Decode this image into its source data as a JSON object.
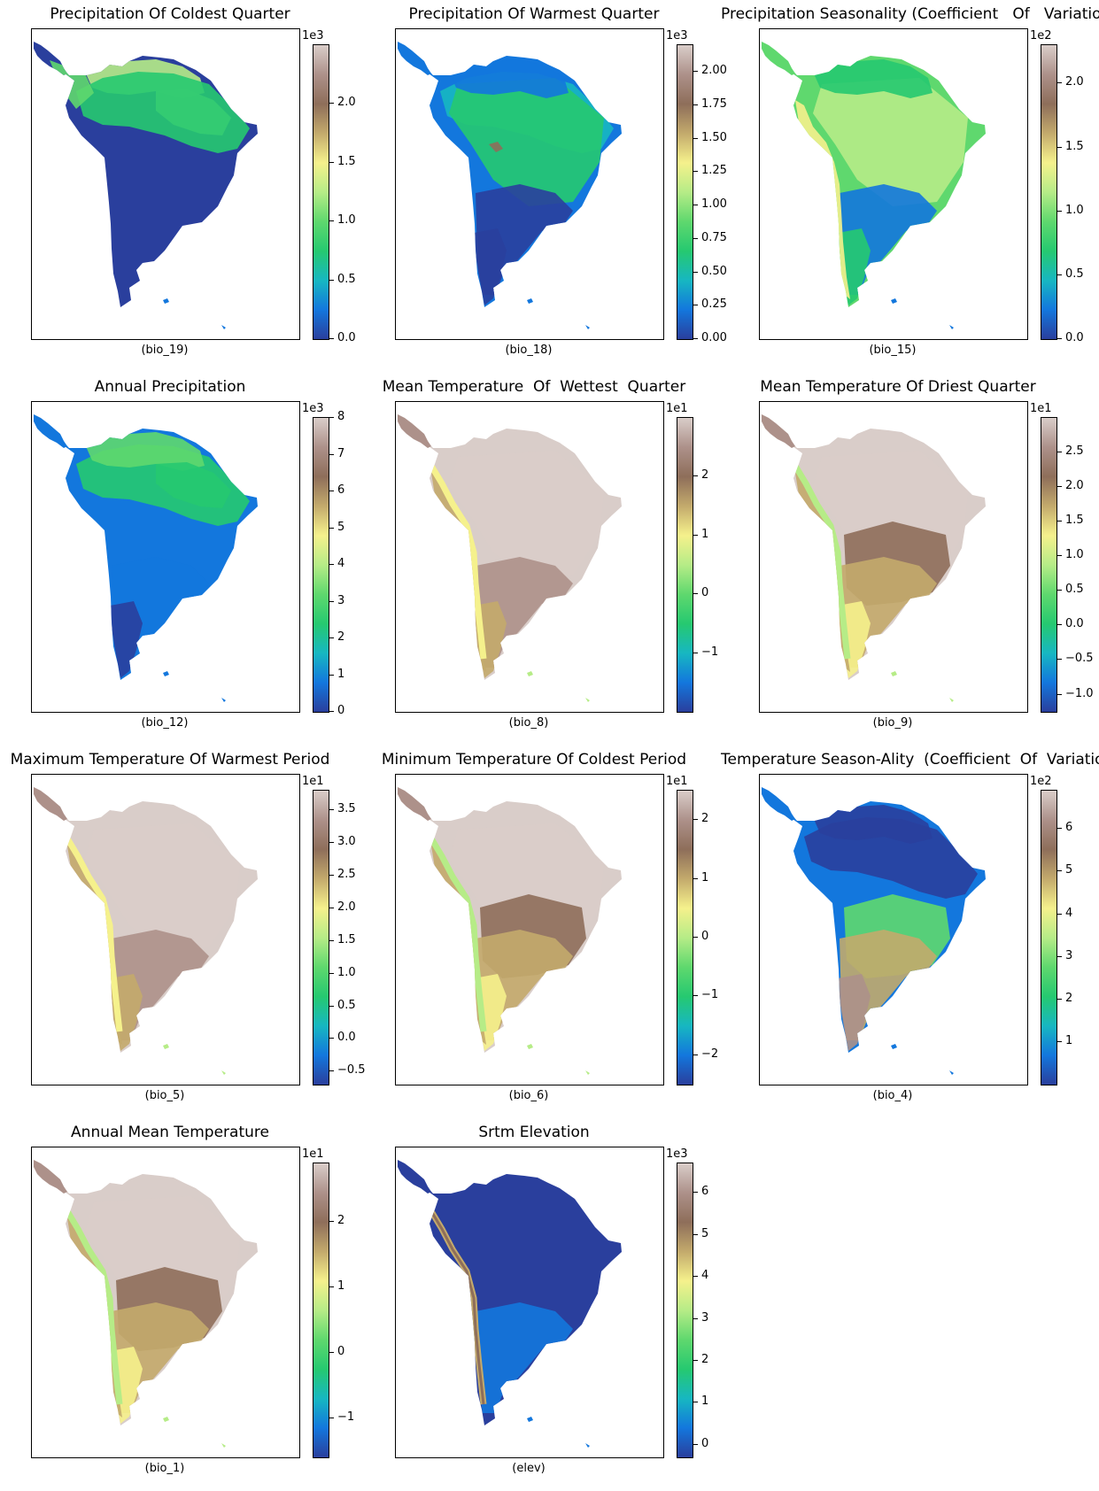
{
  "colormap": [
    "#2a3f9d",
    "#1377dd",
    "#17b7c1",
    "#26c970",
    "#5fd86e",
    "#b6ec87",
    "#f5f18c",
    "#c3aa6c",
    "#8e6e5a",
    "#ad918a",
    "#d9cdc9",
    "#ffffff"
  ],
  "panels": [
    {
      "title": "Precipitation Of Coldest Quarter",
      "code": "(bio_19)",
      "multiplier": "1e3",
      "ticks": [
        {
          "v": 0.0,
          "label": "0.0"
        },
        {
          "v": 0.5,
          "label": "0.5"
        },
        {
          "v": 1.0,
          "label": "1.0"
        },
        {
          "v": 1.5,
          "label": "1.5"
        },
        {
          "v": 2.0,
          "label": "2.0"
        }
      ],
      "vmin": 0,
      "vmax": 2.5,
      "scheme": "coldest"
    },
    {
      "title": "Precipitation Of Warmest Quarter",
      "code": "(bio_18)",
      "multiplier": "1e3",
      "ticks": [
        {
          "v": 0.0,
          "label": "0.00"
        },
        {
          "v": 0.25,
          "label": "0.25"
        },
        {
          "v": 0.5,
          "label": "0.50"
        },
        {
          "v": 0.75,
          "label": "0.75"
        },
        {
          "v": 1.0,
          "label": "1.00"
        },
        {
          "v": 1.25,
          "label": "1.25"
        },
        {
          "v": 1.5,
          "label": "1.50"
        },
        {
          "v": 1.75,
          "label": "1.75"
        },
        {
          "v": 2.0,
          "label": "2.00"
        }
      ],
      "vmin": 0,
      "vmax": 2.2,
      "scheme": "warmest"
    },
    {
      "title": "Precipitation Seasonality (Coefficient   Of   Variation)",
      "code": "(bio_15)",
      "multiplier": "1e2",
      "ticks": [
        {
          "v": 0.0,
          "label": "0.0"
        },
        {
          "v": 0.5,
          "label": "0.5"
        },
        {
          "v": 1.0,
          "label": "1.0"
        },
        {
          "v": 1.5,
          "label": "1.5"
        },
        {
          "v": 2.0,
          "label": "2.0"
        }
      ],
      "vmin": 0,
      "vmax": 2.3,
      "scheme": "seasonality"
    },
    {
      "title": "Annual Precipitation",
      "code": "(bio_12)",
      "multiplier": "1e3",
      "ticks": [
        {
          "v": 0,
          "label": "0"
        },
        {
          "v": 1,
          "label": "1"
        },
        {
          "v": 2,
          "label": "2"
        },
        {
          "v": 3,
          "label": "3"
        },
        {
          "v": 4,
          "label": "4"
        },
        {
          "v": 5,
          "label": "5"
        },
        {
          "v": 6,
          "label": "6"
        },
        {
          "v": 7,
          "label": "7"
        },
        {
          "v": 8,
          "label": "8"
        }
      ],
      "vmin": 0,
      "vmax": 8,
      "scheme": "annualprec"
    },
    {
      "title": "Mean Temperature  Of  Wettest  Quarter",
      "code": "(bio_8)",
      "multiplier": "1e1",
      "ticks": [
        {
          "v": -1,
          "label": "−1"
        },
        {
          "v": 0,
          "label": "0"
        },
        {
          "v": 1,
          "label": "1"
        },
        {
          "v": 2,
          "label": "2"
        }
      ],
      "vmin": -2.0,
      "vmax": 3.0,
      "scheme": "temp"
    },
    {
      "title": "Mean Temperature Of Driest Quarter",
      "code": "(bio_9)",
      "multiplier": "1e1",
      "ticks": [
        {
          "v": -1.0,
          "label": "−1.0"
        },
        {
          "v": -0.5,
          "label": "−0.5"
        },
        {
          "v": 0.0,
          "label": "0.0"
        },
        {
          "v": 0.5,
          "label": "0.5"
        },
        {
          "v": 1.0,
          "label": "1.0"
        },
        {
          "v": 1.5,
          "label": "1.5"
        },
        {
          "v": 2.0,
          "label": "2.0"
        },
        {
          "v": 2.5,
          "label": "2.5"
        }
      ],
      "vmin": -1.25,
      "vmax": 3.0,
      "scheme": "tempcool"
    },
    {
      "title": "Maximum Temperature Of Warmest Period",
      "code": "(bio_5)",
      "multiplier": "1e1",
      "ticks": [
        {
          "v": -0.5,
          "label": "−0.5"
        },
        {
          "v": 0.0,
          "label": "0.0"
        },
        {
          "v": 0.5,
          "label": "0.5"
        },
        {
          "v": 1.0,
          "label": "1.0"
        },
        {
          "v": 1.5,
          "label": "1.5"
        },
        {
          "v": 2.0,
          "label": "2.0"
        },
        {
          "v": 2.5,
          "label": "2.5"
        },
        {
          "v": 3.0,
          "label": "3.0"
        },
        {
          "v": 3.5,
          "label": "3.5"
        }
      ],
      "vmin": -0.7,
      "vmax": 3.8,
      "scheme": "temp"
    },
    {
      "title": "Minimum Temperature Of Coldest Period",
      "code": "(bio_6)",
      "multiplier": "1e1",
      "ticks": [
        {
          "v": -2,
          "label": "−2"
        },
        {
          "v": -1,
          "label": "−1"
        },
        {
          "v": 0,
          "label": "0"
        },
        {
          "v": 1,
          "label": "1"
        },
        {
          "v": 2,
          "label": "2"
        }
      ],
      "vmin": -2.5,
      "vmax": 2.5,
      "scheme": "tempcool"
    },
    {
      "title": "Temperature Season-Ality  (Coefficient  Of  Variation)",
      "code": "(bio_4)",
      "multiplier": "1e2",
      "ticks": [
        {
          "v": 1,
          "label": "1"
        },
        {
          "v": 2,
          "label": "2"
        },
        {
          "v": 3,
          "label": "3"
        },
        {
          "v": 4,
          "label": "4"
        },
        {
          "v": 5,
          "label": "5"
        },
        {
          "v": 6,
          "label": "6"
        }
      ],
      "vmin": 0,
      "vmax": 6.9,
      "scheme": "tseason"
    },
    {
      "title": "Annual Mean Temperature",
      "code": "(bio_1)",
      "multiplier": "1e1",
      "ticks": [
        {
          "v": -1,
          "label": "−1"
        },
        {
          "v": 0,
          "label": "0"
        },
        {
          "v": 1,
          "label": "1"
        },
        {
          "v": 2,
          "label": "2"
        }
      ],
      "vmin": -1.6,
      "vmax": 2.9,
      "scheme": "tempcool"
    },
    {
      "title": "Srtm Elevation",
      "code": "(elev)",
      "multiplier": "1e3",
      "ticks": [
        {
          "v": 0,
          "label": "0"
        },
        {
          "v": 1,
          "label": "1"
        },
        {
          "v": 2,
          "label": "2"
        },
        {
          "v": 3,
          "label": "3"
        },
        {
          "v": 4,
          "label": "4"
        },
        {
          "v": 5,
          "label": "5"
        },
        {
          "v": 6,
          "label": "6"
        }
      ],
      "vmin": -0.3,
      "vmax": 6.7,
      "scheme": "elev"
    }
  ]
}
